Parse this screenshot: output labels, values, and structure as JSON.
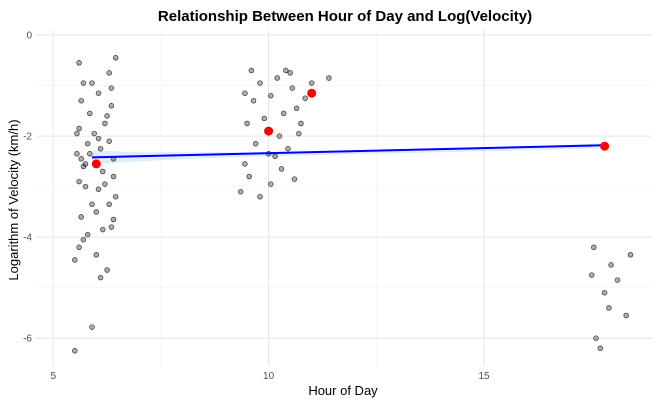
{
  "chart_data": {
    "type": "scatter",
    "title": "Relationship Between Hour of Day and Log(Velocity)",
    "xlabel": "Hour of Day",
    "ylabel": "Logarithm of Velocity (km/h)",
    "xlim": [
      4.6,
      18.9
    ],
    "ylim": [
      -6.55,
      0.1
    ],
    "x_ticks": [
      5,
      10,
      15
    ],
    "y_ticks": [
      0,
      -2,
      -4,
      -6
    ],
    "grid": true,
    "legend": "none",
    "colors": {
      "points": "#000000",
      "mean_points": "#ff0000",
      "trend_line": "#0000ff",
      "confidence_band": "#d6e6f3"
    },
    "series": [
      {
        "type": "scatter",
        "points": [
          [
            5.5,
            -6.25
          ],
          [
            5.9,
            -5.78
          ],
          [
            6.1,
            -4.8
          ],
          [
            5.5,
            -4.45
          ],
          [
            6.25,
            -4.65
          ],
          [
            5.6,
            -4.2
          ],
          [
            6.35,
            -3.8
          ],
          [
            5.8,
            -3.95
          ],
          [
            6.0,
            -3.5
          ],
          [
            5.65,
            -3.6
          ],
          [
            6.3,
            -3.35
          ],
          [
            6.45,
            -3.2
          ],
          [
            5.75,
            -3.0
          ],
          [
            6.05,
            -3.05
          ],
          [
            5.6,
            -2.9
          ],
          [
            6.15,
            -2.7
          ],
          [
            5.7,
            -2.6
          ],
          [
            6.4,
            -2.45
          ],
          [
            5.55,
            -2.35
          ],
          [
            6.1,
            -2.25
          ],
          [
            5.8,
            -2.15
          ],
          [
            6.3,
            -2.1
          ],
          [
            5.95,
            -1.95
          ],
          [
            5.6,
            -1.85
          ],
          [
            6.2,
            -1.75
          ],
          [
            5.85,
            -1.55
          ],
          [
            6.35,
            -1.4
          ],
          [
            5.65,
            -1.3
          ],
          [
            6.05,
            -1.15
          ],
          [
            5.9,
            -0.95
          ],
          [
            6.3,
            -0.75
          ],
          [
            5.6,
            -0.55
          ],
          [
            6.45,
            -0.45
          ],
          [
            5.75,
            -2.55
          ],
          [
            6.2,
            -2.95
          ],
          [
            5.9,
            -3.35
          ],
          [
            6.4,
            -3.65
          ],
          [
            5.7,
            -4.05
          ],
          [
            6.0,
            -4.35
          ],
          [
            6.25,
            -1.6
          ],
          [
            5.55,
            -1.95
          ],
          [
            6.4,
            -2.8
          ],
          [
            5.85,
            -2.35
          ],
          [
            6.15,
            -3.85
          ],
          [
            5.7,
            -0.95
          ],
          [
            6.35,
            -1.05
          ],
          [
            5.65,
            -2.45
          ],
          [
            6.05,
            -2.05
          ],
          [
            9.35,
            -3.1
          ],
          [
            9.55,
            -2.8
          ],
          [
            9.8,
            -3.2
          ],
          [
            10.05,
            -2.95
          ],
          [
            10.3,
            -2.65
          ],
          [
            10.6,
            -2.85
          ],
          [
            9.45,
            -2.55
          ],
          [
            10.15,
            -2.4
          ],
          [
            10.45,
            -2.25
          ],
          [
            9.7,
            -2.15
          ],
          [
            10.25,
            -2.0
          ],
          [
            10.7,
            -1.95
          ],
          [
            9.5,
            -1.75
          ],
          [
            9.9,
            -1.65
          ],
          [
            10.35,
            -1.55
          ],
          [
            10.65,
            -1.45
          ],
          [
            9.65,
            -1.3
          ],
          [
            10.05,
            -1.2
          ],
          [
            10.55,
            -1.05
          ],
          [
            9.45,
            -1.15
          ],
          [
            9.8,
            -0.95
          ],
          [
            10.2,
            -0.85
          ],
          [
            10.5,
            -0.75
          ],
          [
            9.6,
            -0.7
          ],
          [
            10.0,
            -2.35
          ],
          [
            10.75,
            -1.75
          ],
          [
            10.4,
            -0.7
          ],
          [
            11.0,
            -0.95
          ],
          [
            11.4,
            -0.85
          ],
          [
            10.85,
            -1.25
          ],
          [
            17.7,
            -6.2
          ],
          [
            17.6,
            -6.0
          ],
          [
            17.9,
            -5.4
          ],
          [
            18.3,
            -5.55
          ],
          [
            17.8,
            -5.1
          ],
          [
            17.5,
            -4.75
          ],
          [
            18.1,
            -4.85
          ],
          [
            17.95,
            -4.55
          ],
          [
            18.4,
            -4.35
          ],
          [
            17.55,
            -4.2
          ]
        ]
      },
      {
        "name": "mean",
        "type": "scatter",
        "points": [
          [
            6,
            -2.55
          ],
          [
            10,
            -1.9
          ],
          [
            11,
            -1.15
          ],
          [
            17.8,
            -2.2
          ]
        ]
      },
      {
        "name": "trend",
        "type": "line",
        "points": [
          [
            5.9,
            -2.42
          ],
          [
            17.8,
            -2.18
          ]
        ]
      },
      {
        "name": "confidence",
        "type": "area",
        "x": [
          5.9,
          7,
          8.5,
          10,
          12,
          14,
          16,
          17.8
        ],
        "upper": [
          -2.28,
          -2.32,
          -2.32,
          -2.32,
          -2.28,
          -2.24,
          -2.2,
          -2.14
        ],
        "lower": [
          -2.56,
          -2.5,
          -2.44,
          -2.4,
          -2.36,
          -2.32,
          -2.28,
          -2.24
        ]
      }
    ]
  }
}
